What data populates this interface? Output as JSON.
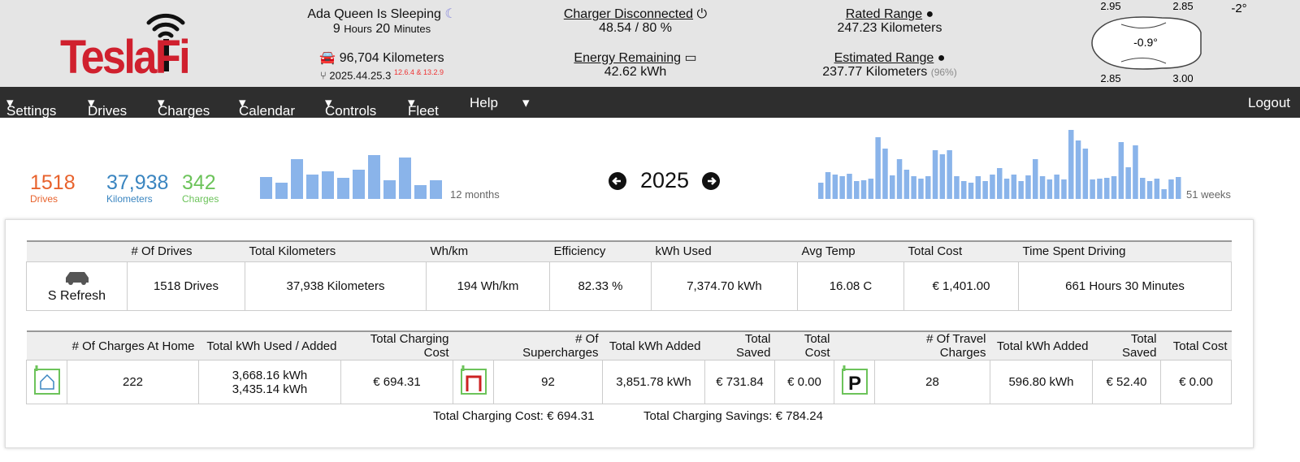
{
  "header": {
    "logo": "TeslaFi",
    "status": "Ada Queen Is Sleeping",
    "sleep_hours": "9",
    "hours_unit": "Hours",
    "sleep_minutes": "20",
    "minutes_unit": "Minutes",
    "odometer": "96,704 Kilometers",
    "version": "2025.44.25.3",
    "version_note": "12.6.4 & 13.2.9",
    "charger_label": "Charger Disconnected",
    "charge_level": "48.54 / 80 %",
    "energy_label": "Energy Remaining",
    "energy": "42.62 kWh",
    "rated_label": "Rated Range",
    "rated": "247.23 Kilometers",
    "estimated_label": "Estimated Range",
    "estimated": "237.77 Kilometers",
    "estimated_pct": "(96%)",
    "tires": [
      "2.95",
      "2.85",
      "2.85",
      "3.00"
    ],
    "inside_temp": "-0.9°",
    "outside_temp": "-2°"
  },
  "nav": {
    "items": [
      "Settings",
      "Drives",
      "Charges",
      "Calendar",
      "Controls",
      "Fleet",
      "Help"
    ],
    "logout": "Logout"
  },
  "summary": {
    "drives": "1518",
    "drives_label": "Drives",
    "distance": "37,938",
    "distance_label": "Kilometers",
    "charges": "342",
    "charges_label": "Charges",
    "year": "2025",
    "monthly_chart": {
      "values": [
        27,
        20,
        49,
        30,
        34,
        26,
        36,
        54,
        23,
        51,
        17,
        23
      ],
      "label": "12 months"
    },
    "weekly_chart": {
      "values": [
        20,
        33,
        30,
        28,
        31,
        22,
        23,
        25,
        76,
        62,
        29,
        49,
        36,
        28,
        25,
        28,
        60,
        55,
        60,
        28,
        22,
        20,
        28,
        22,
        30,
        38,
        25,
        30,
        22,
        29,
        49,
        28,
        24,
        30,
        24,
        85,
        72,
        62,
        24,
        25,
        26,
        28,
        70,
        39,
        66,
        26,
        22,
        25,
        12,
        24,
        27
      ],
      "label": "51 weeks"
    }
  },
  "drives_table": {
    "headers": [
      "# Of Drives",
      "Total Kilometers",
      "Wh/km",
      "Efficiency",
      "kWh Used",
      "Avg Temp",
      "Total Cost",
      "Time Spent Driving"
    ],
    "car": "S Refresh",
    "row": [
      "1518 Drives",
      "37,938 Kilometers",
      "194 Wh/km",
      "82.33 %",
      "7,374.70 kWh",
      "16.08 C",
      "€ 1,401.00",
      "661 Hours 30 Minutes"
    ]
  },
  "charges_table": {
    "headers": [
      "# Of Charges At Home",
      "Total kWh Used / Added",
      "Total Charging Cost",
      "# Of Supercharges",
      "Total kWh Added",
      "Total Saved",
      "Total Cost",
      "# Of Travel Charges",
      "Total kWh Added",
      "Total Saved",
      "Total Cost"
    ],
    "home": {
      "count": "222",
      "kwh_used": "3,668.16 kWh",
      "kwh_added": "3,435.14 kWh",
      "cost": "€ 694.31"
    },
    "super": {
      "count": "92",
      "kwh_added": "3,851.78 kWh",
      "saved": "€ 731.84",
      "cost": "€ 0.00"
    },
    "travel": {
      "count": "28",
      "kwh_added": "596.80 kWh",
      "saved": "€ 52.40",
      "cost": "€ 0.00"
    }
  },
  "totals": {
    "cost": "Total Charging Cost: € 694.31",
    "savings": "Total Charging Savings: € 784.24"
  }
}
